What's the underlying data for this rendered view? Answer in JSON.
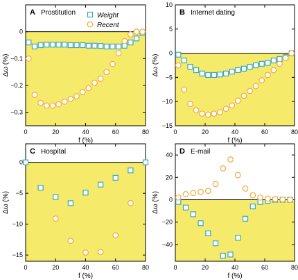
{
  "colors": {
    "fill": "#f5ea6a",
    "weight": "#37a9c4",
    "recent": "#f4a83b",
    "background": "#ffffff"
  },
  "legend": {
    "weight_label": "Weight",
    "recent_label": "Recent"
  },
  "chart_data": [
    {
      "type": "scatter",
      "panel": "A",
      "title": "Prostitution",
      "xlabel": "f (%)",
      "ylabel": "Δω (%)",
      "xlim": [
        0,
        80
      ],
      "ylim": [
        -0.35,
        0.1
      ],
      "xticks": [
        0,
        20,
        40,
        60,
        80
      ],
      "yticks": [
        0,
        -0.1,
        -0.2,
        -0.3
      ],
      "ytick_labels": [
        "0",
        "−0.1",
        "−0.2",
        "−0.3"
      ],
      "legend": true,
      "series": [
        {
          "name": "Weight",
          "marker": "square",
          "x": [
            2,
            6,
            10,
            14,
            18,
            22,
            26,
            30,
            34,
            38,
            42,
            46,
            50,
            54,
            58,
            62,
            66,
            70,
            74,
            78
          ],
          "y": [
            -0.04,
            -0.055,
            -0.05,
            -0.048,
            -0.048,
            -0.048,
            -0.048,
            -0.05,
            -0.05,
            -0.05,
            -0.052,
            -0.052,
            -0.053,
            -0.055,
            -0.055,
            -0.055,
            -0.052,
            -0.04,
            -0.025,
            -0.005
          ]
        },
        {
          "name": "Recent",
          "marker": "circle",
          "x": [
            2,
            6,
            10,
            14,
            18,
            22,
            26,
            30,
            34,
            38,
            42,
            46,
            50,
            54,
            58,
            62,
            66,
            70,
            74,
            78
          ],
          "y": [
            -0.1,
            -0.235,
            -0.265,
            -0.275,
            -0.275,
            -0.27,
            -0.26,
            -0.25,
            -0.24,
            -0.225,
            -0.21,
            -0.19,
            -0.175,
            -0.15,
            -0.12,
            -0.08,
            -0.035,
            -0.01,
            0,
            0
          ]
        }
      ]
    },
    {
      "type": "scatter",
      "panel": "B",
      "title": "Internet dating",
      "xlabel": "f (%)",
      "ylabel": "Δω (%)",
      "xlim": [
        0,
        80
      ],
      "ylim": [
        -15,
        10
      ],
      "xticks": [
        0,
        20,
        40,
        60,
        80
      ],
      "yticks": [
        10,
        5,
        0,
        -5,
        -10,
        -15
      ],
      "ytick_labels": [
        "10",
        "5",
        "0",
        "−5",
        "−10",
        "−15"
      ],
      "legend": false,
      "series": [
        {
          "name": "Weight",
          "marker": "square",
          "x": [
            2,
            6,
            10,
            14,
            18,
            22,
            26,
            30,
            34,
            38,
            42,
            46,
            50,
            54,
            58,
            62,
            66,
            70,
            74,
            78
          ],
          "y": [
            -0.3,
            -1.5,
            -2.8,
            -3.5,
            -4.2,
            -4.5,
            -4.5,
            -4.4,
            -4.2,
            -3.8,
            -3.5,
            -3.2,
            -2.8,
            -2.5,
            -2.2,
            -2.0,
            -1.5,
            -1.2,
            -0.8,
            0
          ]
        },
        {
          "name": "Recent",
          "marker": "circle",
          "x": [
            2,
            6,
            10,
            14,
            18,
            22,
            26,
            30,
            34,
            38,
            42,
            46,
            50,
            54,
            58,
            62,
            66,
            70,
            74,
            78
          ],
          "y": [
            -2.5,
            -7.5,
            -10.5,
            -11.8,
            -12.5,
            -12.7,
            -12.5,
            -12.2,
            -11.5,
            -10.8,
            -9.8,
            -8.8,
            -7.8,
            -6.8,
            -5.6,
            -4.5,
            -3.5,
            -2.2,
            -1.0,
            0
          ]
        }
      ]
    },
    {
      "type": "scatter",
      "panel": "C",
      "title": "Hospital",
      "xlabel": "f (%)",
      "ylabel": "Δω (%)",
      "xlim": [
        0,
        80
      ],
      "ylim": [
        -16,
        3
      ],
      "xticks": [
        0,
        20,
        40,
        60,
        80
      ],
      "yticks": [
        0,
        -5,
        -10,
        -15
      ],
      "ytick_labels": [
        "0",
        "−5",
        "−10",
        "−15"
      ],
      "legend": false,
      "series": [
        {
          "name": "Weight",
          "marker": "square",
          "x": [
            0,
            10,
            20,
            30,
            40,
            50,
            60,
            70,
            80
          ],
          "y": [
            0,
            -4.1,
            -5.6,
            -6.6,
            -4.9,
            -3.6,
            -2.5,
            -1.3,
            0
          ]
        },
        {
          "name": "Recent",
          "marker": "circle",
          "x": [
            20,
            30,
            40,
            50,
            60,
            70
          ],
          "y": [
            -9.1,
            -12.7,
            -14.6,
            -14.5,
            -11.8,
            -6.6
          ]
        }
      ]
    },
    {
      "type": "scatter",
      "panel": "D",
      "title": "E-mail",
      "xlabel": "f (%)",
      "ylabel": "Δω (%)",
      "xlim": [
        0,
        80
      ],
      "ylim": [
        -55,
        50
      ],
      "xticks": [
        0,
        20,
        40,
        60,
        80
      ],
      "yticks": [
        40,
        20,
        0,
        -20,
        -40
      ],
      "ytick_labels": [
        "40",
        "20",
        "0",
        "−20",
        "−40"
      ],
      "legend": false,
      "series": [
        {
          "name": "Weight",
          "marker": "square",
          "x": [
            2,
            7,
            12,
            17,
            22,
            27,
            32,
            37,
            42,
            47,
            52,
            57,
            62,
            67,
            72,
            77
          ],
          "y": [
            -2,
            -7,
            -13,
            -21,
            -30,
            -39,
            -50,
            -49,
            -34,
            -17,
            -6,
            -2,
            -1,
            0,
            0,
            0
          ]
        },
        {
          "name": "Recent",
          "marker": "circle",
          "x": [
            2,
            7,
            12,
            17,
            22,
            27,
            32,
            37,
            42,
            47,
            52,
            57,
            62,
            67,
            72,
            77
          ],
          "y": [
            2,
            5,
            6,
            7,
            8,
            14,
            28,
            36,
            22,
            10,
            4,
            2,
            1,
            0.5,
            0.2,
            0
          ]
        }
      ]
    }
  ]
}
